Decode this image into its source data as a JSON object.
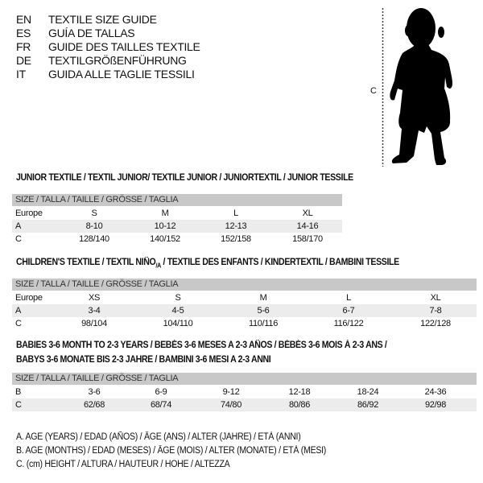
{
  "languages": [
    {
      "code": "EN",
      "label": "TEXTILE SIZE GUIDE"
    },
    {
      "code": "ES",
      "label": "GUÍA DE TALLAS"
    },
    {
      "code": "FR",
      "label": "GUIDE DES TAILLES TEXTILE"
    },
    {
      "code": "DE",
      "label": "TEXTILGRÖßENFÜHRUNG"
    },
    {
      "code": "IT",
      "label": "GUIDA ALLE TAGLIE TESSILI"
    }
  ],
  "figure": {
    "measure_label": "C",
    "icon": "baby-silhouette"
  },
  "junior": {
    "title": "JUNIOR TEXTILE / TEXTIL JUNIOR/ TEXTILE JUNIOR / JUNIORTEXTIL / JUNIOR TESSILE",
    "header": "SIZE / TALLA / TAILLE / GRÖSSE / TAGLIA",
    "rows": [
      {
        "label": "Europe",
        "values": [
          "S",
          "M",
          "L",
          "XL"
        ]
      },
      {
        "label": "A",
        "values": [
          "8-10",
          "10-12",
          "12-13",
          "14-16"
        ]
      },
      {
        "label": "C",
        "values": [
          "128/140",
          "140/152",
          "152/158",
          "158/170"
        ]
      }
    ]
  },
  "children": {
    "title_main": "CHILDREN'S TEXTILE / TEXTIL NIÑO",
    "title_sub": "/A",
    "title_rest": " / TEXTILE DES ENFANTS / KINDERTEXTIL / BAMBINI TESSILE",
    "header": "SIZE / TALLA / TAILLE / GRÖSSE / TAGLIA",
    "rows": [
      {
        "label": "Europe",
        "values": [
          "XS",
          "S",
          "M",
          "L",
          "XL"
        ]
      },
      {
        "label": "A",
        "values": [
          "3-4",
          "4-5",
          "5-6",
          "6-7",
          "7-8"
        ]
      },
      {
        "label": "C",
        "values": [
          "98/104",
          "104/110",
          "110/116",
          "116/122",
          "122/128"
        ]
      }
    ]
  },
  "babies": {
    "title_line1": "BABIES 3-6 MONTH TO 2-3 YEARS / BEBÉS 3-6 MESES A 2-3 AÑOS / BÉBÉS 3-6 MOIS À 2-3 ANS /",
    "title_line2": "BABYS 3-6 MONATE BIS 2-3 JAHRE / BAMBINI 3-6 MESI A 2-3 ANNI",
    "header": "SIZE / TALLA / TAILLE / GRÖSSE / TAGLIA",
    "rows": [
      {
        "label": "B",
        "values": [
          "3-6",
          "6-9",
          "9-12",
          "12-18",
          "18-24",
          "24-36"
        ]
      },
      {
        "label": "C",
        "values": [
          "62/68",
          "68/74",
          "74/80",
          "80/86",
          "86/92",
          "92/98"
        ]
      }
    ]
  },
  "legend": [
    "A. AGE (YEARS) / EDAD (AÑOS) / ÂGE (ANS) / ALTER (JAHRE) / ETÀ (ANNI)",
    "B. AGE (MONTHS) / EDAD (MESES) / ÂGE (MOIS) / ALTER (MONATE) / ETÀ (MESI)",
    "C. (cm) HEIGHT / ALTURA / HAUTEUR / HÖHE / ALTEZZA"
  ]
}
